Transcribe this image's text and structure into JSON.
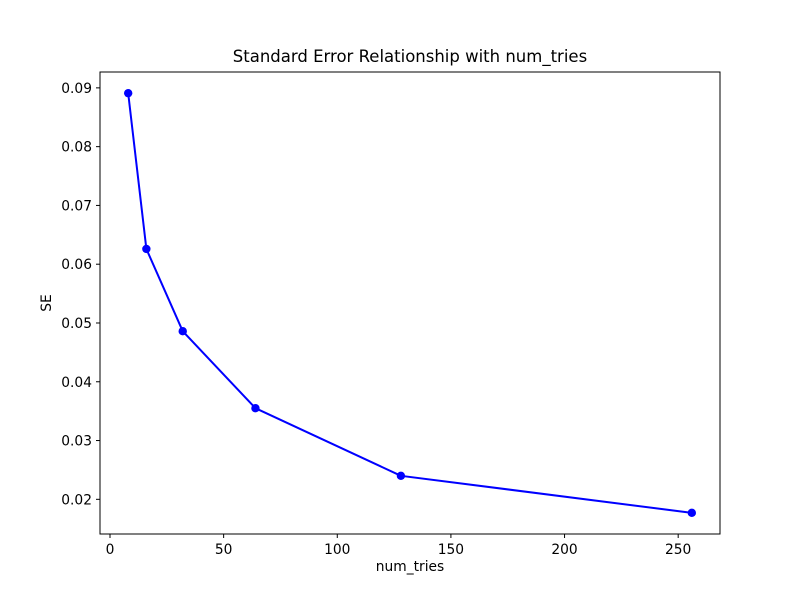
{
  "figure": {
    "background": "#ffffff",
    "text_color": "#000000",
    "spine_color": "#000000"
  },
  "chart_data": {
    "type": "line",
    "title": "Standard Error Relationship with num_tries",
    "xlabel": "num_tries",
    "ylabel": "SE",
    "x": [
      8,
      16,
      32,
      64,
      128,
      256
    ],
    "y": [
      0.0891,
      0.0626,
      0.0486,
      0.0355,
      0.024,
      0.0177
    ],
    "line_color": "#0000ff",
    "marker": "circle",
    "marker_color": "#0000ff",
    "grid": false,
    "xlim": [
      -4.4,
      268.4
    ],
    "ylim": [
      0.0141,
      0.0927
    ],
    "xtick_values": [
      0,
      50,
      100,
      150,
      200,
      250
    ],
    "xtick_labels": [
      "0",
      "50",
      "100",
      "150",
      "200",
      "250"
    ],
    "ytick_values": [
      0.02,
      0.03,
      0.04,
      0.05,
      0.06,
      0.07,
      0.08,
      0.09
    ],
    "ytick_labels": [
      "0.02",
      "0.03",
      "0.04",
      "0.05",
      "0.06",
      "0.07",
      "0.08",
      "0.09"
    ]
  }
}
